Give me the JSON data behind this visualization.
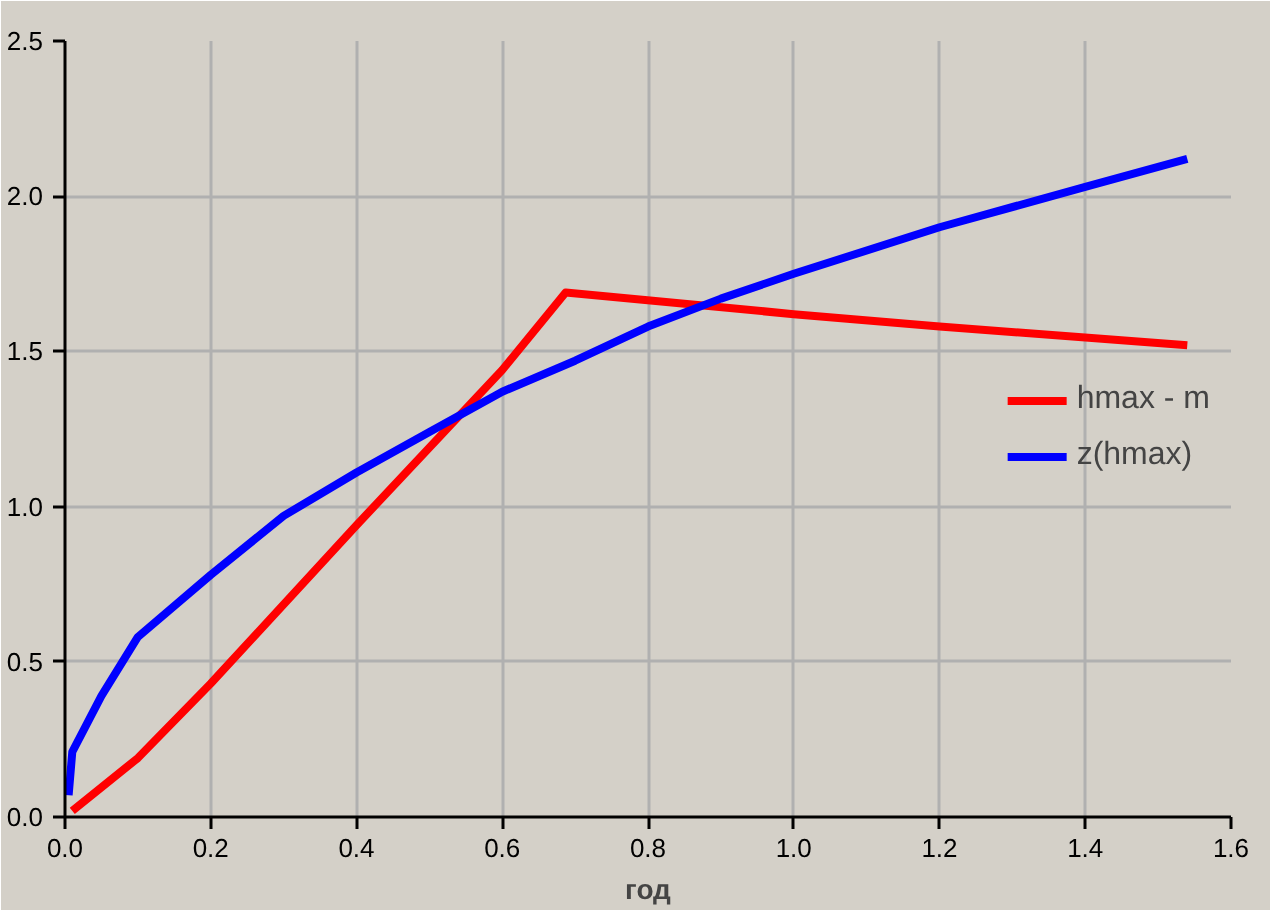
{
  "chart_data": {
    "type": "line",
    "xlabel": "год",
    "xlim": [
      0,
      1.6
    ],
    "ylim": [
      0,
      2.5
    ],
    "xticks": [
      {
        "value": 0,
        "label": "0.0"
      },
      {
        "value": 0.2,
        "label": "0.2"
      },
      {
        "value": 0.4,
        "label": "0.4"
      },
      {
        "value": 0.6,
        "label": "0.6"
      },
      {
        "value": 0.8,
        "label": "0.8"
      },
      {
        "value": 1,
        "label": "1.0"
      },
      {
        "value": 1.2,
        "label": "1.2"
      },
      {
        "value": 1.4,
        "label": "1.4"
      },
      {
        "value": 1.6,
        "label": "1.6"
      }
    ],
    "yticks": [
      {
        "value": 0,
        "label": "0.0"
      },
      {
        "value": 0.5,
        "label": "0.5"
      },
      {
        "value": 1,
        "label": "1.0"
      },
      {
        "value": 1.5,
        "label": "1.5"
      },
      {
        "value": 2,
        "label": "2.0"
      },
      {
        "value": 2.5,
        "label": "2.5"
      }
    ],
    "grid": true,
    "legend": "right",
    "marker": "none",
    "line_style": "solid",
    "series": [
      {
        "name": "hmax - m",
        "color": "#ff0000",
        "x": [
          0.01,
          0.1,
          0.2,
          0.4,
          0.6,
          0.687,
          1.0,
          1.2,
          1.54
        ],
        "values": [
          0.02,
          0.19,
          0.43,
          0.94,
          1.44,
          1.69,
          1.62,
          1.58,
          1.52
        ]
      },
      {
        "name": "z(hmax)",
        "color": "#0000ff",
        "x": [
          0.005,
          0.01,
          0.05,
          0.1,
          0.2,
          0.3,
          0.4,
          0.5,
          0.6,
          0.7,
          0.8,
          0.9,
          1.0,
          1.2,
          1.4,
          1.54
        ],
        "values": [
          0.07,
          0.21,
          0.39,
          0.58,
          0.78,
          0.97,
          1.11,
          1.24,
          1.37,
          1.47,
          1.58,
          1.67,
          1.75,
          1.9,
          2.03,
          2.12
        ]
      }
    ]
  }
}
